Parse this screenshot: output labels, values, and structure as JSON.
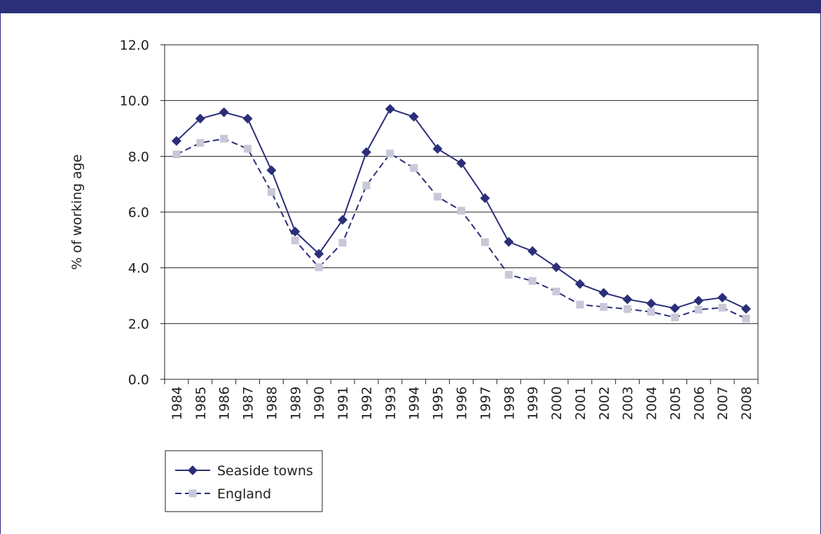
{
  "chart_data": {
    "type": "line",
    "title": "",
    "xlabel": "",
    "ylabel": "% of working age",
    "ylim": [
      0,
      12
    ],
    "yticks": [
      "0.0",
      "2.0",
      "4.0",
      "6.0",
      "8.0",
      "10.0",
      "12.0"
    ],
    "grid": "horizontal",
    "legend_position": "bottom-left",
    "categories": [
      "1984",
      "1985",
      "1986",
      "1987",
      "1988",
      "1989",
      "1990",
      "1991",
      "1992",
      "1993",
      "1994",
      "1995",
      "1996",
      "1997",
      "1998",
      "1999",
      "2000",
      "2001",
      "2002",
      "2003",
      "2004",
      "2005",
      "2006",
      "2007",
      "2008"
    ],
    "series": [
      {
        "name": "Seaside towns",
        "color": "#2b2f7a",
        "marker": "diamond",
        "line_style": "solid",
        "values": [
          8.55,
          9.35,
          9.58,
          9.35,
          7.5,
          5.3,
          4.5,
          5.72,
          8.15,
          9.7,
          9.42,
          8.27,
          7.75,
          6.5,
          4.93,
          4.6,
          4.02,
          3.42,
          3.1,
          2.87,
          2.72,
          2.55,
          2.82,
          2.93,
          2.53
        ]
      },
      {
        "name": "England",
        "color": "#2b2f7a",
        "marker_color": "#c8c8d8",
        "marker": "square",
        "line_style": "dashed",
        "values": [
          8.07,
          8.48,
          8.63,
          8.27,
          6.72,
          4.98,
          4.02,
          4.9,
          6.95,
          8.1,
          7.58,
          6.55,
          6.05,
          4.92,
          3.75,
          3.53,
          3.15,
          2.68,
          2.6,
          2.52,
          2.42,
          2.22,
          2.5,
          2.57,
          2.18
        ]
      }
    ]
  }
}
